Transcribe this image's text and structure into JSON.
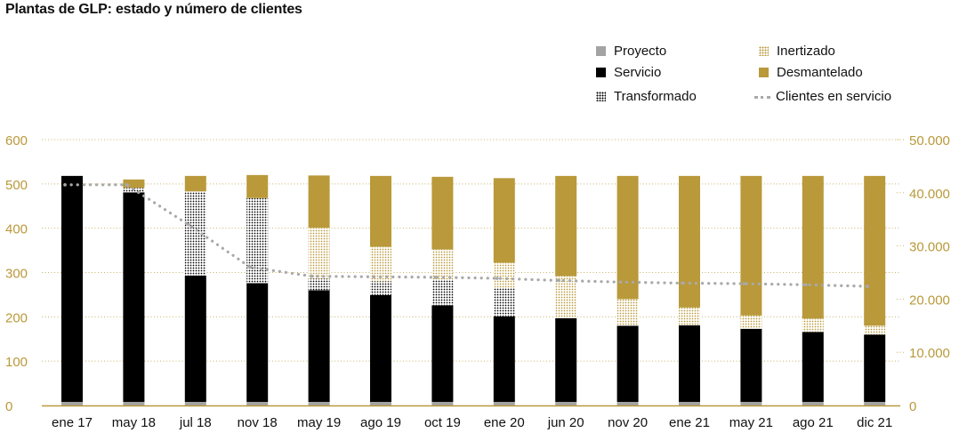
{
  "chart_data": {
    "type": "bar",
    "title": "Plantas de GLP: estado y número de clientes",
    "categories": [
      "ene 17",
      "may 18",
      "jul 18",
      "nov 18",
      "may 19",
      "ago 19",
      "oct 19",
      "ene 20",
      "jun 20",
      "nov 20",
      "ene 21",
      "may 21",
      "ago 21",
      "dic 21"
    ],
    "series": [
      {
        "name": "Proyecto",
        "values": [
          8,
          8,
          8,
          8,
          8,
          8,
          8,
          8,
          8,
          8,
          8,
          8,
          8,
          8
        ]
      },
      {
        "name": "Servicio",
        "values": [
          510,
          473,
          285,
          268,
          252,
          241,
          218,
          193,
          189,
          172,
          173,
          165,
          158,
          152
        ]
      },
      {
        "name": "Transformado",
        "values": [
          0,
          10,
          190,
          192,
          26,
          31,
          58,
          63,
          0,
          0,
          0,
          0,
          0,
          0
        ]
      },
      {
        "name": "Inertizado",
        "values": [
          0,
          0,
          0,
          0,
          115,
          78,
          68,
          58,
          95,
          60,
          40,
          30,
          30,
          20
        ]
      },
      {
        "name": "Desmantelado",
        "values": [
          0,
          19,
          35,
          52,
          118,
          160,
          164,
          191,
          226,
          278,
          297,
          315,
          322,
          338
        ]
      }
    ],
    "line_series": {
      "name": "Clientes en servicio",
      "axis": "right",
      "values": [
        41500,
        41500,
        34000,
        26000,
        24300,
        24200,
        24100,
        23900,
        23500,
        23200,
        23000,
        22900,
        22700,
        22400
      ]
    },
    "y_left": {
      "min": 0,
      "max": 600,
      "ticks": [
        "0",
        "100",
        "200",
        "300",
        "400",
        "500",
        "600"
      ]
    },
    "y_right": {
      "min": 0,
      "max": 50000,
      "ticks": [
        "0",
        "10.000",
        "20.000",
        "30.000",
        "40.000",
        "50.000"
      ]
    },
    "legend": [
      {
        "name": "Proyecto",
        "style": "solid-gray"
      },
      {
        "name": "Servicio",
        "style": "solid-black"
      },
      {
        "name": "Transformado",
        "style": "dotted-black"
      },
      {
        "name": "Inertizado",
        "style": "dotted-gold"
      },
      {
        "name": "Desmantelado",
        "style": "solid-gold"
      },
      {
        "name": "Clientes en servicio",
        "style": "dotted-line"
      }
    ],
    "legend_position": "top-right",
    "grid": true
  },
  "colors": {
    "proyecto": "#a3a3a3",
    "servicio": "#000000",
    "gold": "#b9993a",
    "line": "#a9a9a9",
    "grid": "#c9b26a"
  }
}
